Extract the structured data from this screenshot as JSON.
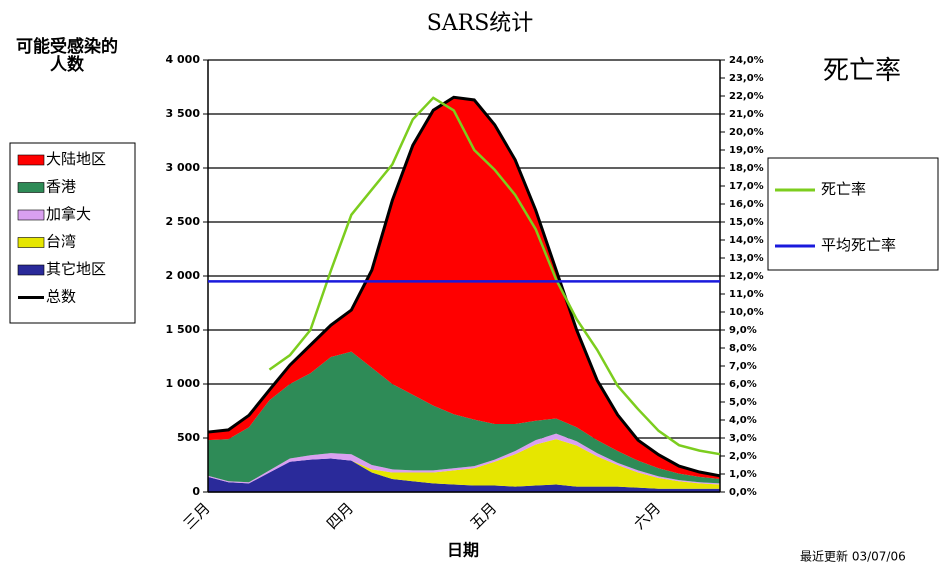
{
  "chart_data": {
    "type": "area",
    "title": "SARS统计",
    "y_label": "可能受感染的人数",
    "y2_label": "死亡率",
    "x_label": "日期",
    "note": "最近更新 03/07/06",
    "categories": [
      "三月",
      null,
      null,
      null,
      null,
      null,
      null,
      "四月",
      null,
      null,
      null,
      null,
      null,
      null,
      "五月",
      null,
      null,
      null,
      null,
      null,
      null,
      null,
      "六月",
      null,
      null,
      null
    ],
    "ylim": [
      0,
      4000
    ],
    "yticks": [
      0,
      500,
      {
        "value": 1000,
        "label": "1 000"
      },
      {
        "value": 1500,
        "label": "1 500"
      },
      {
        "value": 2000,
        "label": "2 000"
      },
      {
        "value": 2500,
        "label": "2 500"
      },
      {
        "value": 3000,
        "label": "3 000"
      },
      {
        "value": 3500,
        "label": "3 500"
      },
      {
        "value": 4000,
        "label": "4 000"
      }
    ],
    "y2lim": [
      0,
      24
    ],
    "y2ticks": [
      {
        "value": 0,
        "label": "0,0%"
      },
      {
        "value": 1,
        "label": "1,0%"
      },
      {
        "value": 2,
        "label": "2,0%"
      },
      {
        "value": 3,
        "label": "3,0%"
      },
      {
        "value": 4,
        "label": "4,0%"
      },
      {
        "value": 5,
        "label": "5,0%"
      },
      {
        "value": 6,
        "label": "6,0%"
      },
      {
        "value": 7,
        "label": "7,0%"
      },
      {
        "value": 8,
        "label": "8,0%"
      },
      {
        "value": 9,
        "label": "9,0%"
      },
      {
        "value": 10,
        "label": "10,0%"
      },
      {
        "value": 11,
        "label": "11,0%"
      },
      {
        "value": 12,
        "label": "12,0%"
      },
      {
        "value": 13,
        "label": "13,0%"
      },
      {
        "value": 14,
        "label": "14,0%"
      },
      {
        "value": 15,
        "label": "15,0%"
      },
      {
        "value": 16,
        "label": "16,0%"
      },
      {
        "value": 17,
        "label": "17,0%"
      },
      {
        "value": 18,
        "label": "18,0%"
      },
      {
        "value": 19,
        "label": "19,0%"
      },
      {
        "value": 20,
        "label": "20,0%"
      },
      {
        "value": 21,
        "label": "21,0%"
      },
      {
        "value": 22,
        "label": "22,0%"
      },
      {
        "value": 23,
        "label": "23,0%"
      },
      {
        "value": 24,
        "label": "24,0%"
      }
    ],
    "grid": true,
    "series": [
      {
        "name": "大陆地区",
        "color": "#ff0000",
        "kind": "area",
        "axis": "y",
        "values": [
          75,
          85,
          110,
          95,
          175,
          260,
          295,
          385,
          905,
          1700,
          2310,
          2735,
          2935,
          2960,
          2770,
          2445,
          1950,
          1375,
          900,
          555,
          335,
          190,
          125,
          70,
          45,
          30
        ]
      },
      {
        "name": "香港",
        "color": "#2e8b57",
        "kind": "area",
        "axis": "y",
        "values": [
          330,
          390,
          510,
          650,
          690,
          760,
          890,
          950,
          900,
          790,
          700,
          600,
          500,
          430,
          330,
          250,
          180,
          140,
          130,
          120,
          110,
          90,
          75,
          60,
          50,
          40
        ]
      },
      {
        "name": "加拿大",
        "color": "#d9a0f0",
        "kind": "area",
        "axis": "y",
        "values": [
          10,
          10,
          10,
          20,
          30,
          40,
          50,
          60,
          40,
          30,
          20,
          20,
          20,
          20,
          20,
          30,
          40,
          50,
          40,
          30,
          20,
          20,
          15,
          10,
          10,
          10
        ]
      },
      {
        "name": "台湾",
        "color": "#e6e600",
        "kind": "area",
        "axis": "y",
        "values": [
          0,
          0,
          0,
          0,
          0,
          0,
          0,
          0,
          30,
          60,
          80,
          100,
          130,
          160,
          220,
          300,
          380,
          420,
          380,
          280,
          200,
          140,
          100,
          70,
          50,
          40
        ]
      },
      {
        "name": "其它地区",
        "color": "#2a2a9a",
        "kind": "area",
        "axis": "y",
        "values": [
          140,
          90,
          80,
          180,
          280,
          300,
          310,
          290,
          180,
          120,
          100,
          80,
          70,
          60,
          60,
          50,
          60,
          70,
          50,
          50,
          50,
          40,
          30,
          30,
          30,
          30
        ]
      },
      {
        "name": "总数",
        "color": "#000000",
        "kind": "line",
        "axis": "y",
        "values": [
          555,
          575,
          710,
          945,
          1175,
          1360,
          1545,
          1685,
          2055,
          2700,
          3210,
          3535,
          3655,
          3630,
          3400,
          3075,
          2610,
          2055,
          1500,
          1035,
          715,
          480,
          345,
          240,
          185,
          150
        ]
      },
      {
        "name": "死亡率",
        "color": "#7ccd1e",
        "kind": "line",
        "axis": "y2",
        "values": [
          null,
          null,
          null,
          6.8,
          7.6,
          9.0,
          12.3,
          15.4,
          16.8,
          18.2,
          20.7,
          21.9,
          21.2,
          19.0,
          17.9,
          16.5,
          14.6,
          11.8,
          9.6,
          7.9,
          5.9,
          4.6,
          3.4,
          2.6,
          2.3,
          2.1
        ]
      },
      {
        "name": "平均死亡率",
        "color": "#1a1adc",
        "kind": "line",
        "axis": "y2",
        "values": [
          11.7,
          11.7,
          11.7,
          11.7,
          11.7,
          11.7,
          11.7,
          11.7,
          11.7,
          11.7,
          11.7,
          11.7,
          11.7,
          11.7,
          11.7,
          11.7,
          11.7,
          11.7,
          11.7,
          11.7,
          11.7,
          11.7,
          11.7,
          11.7,
          11.7,
          11.7
        ]
      }
    ]
  }
}
